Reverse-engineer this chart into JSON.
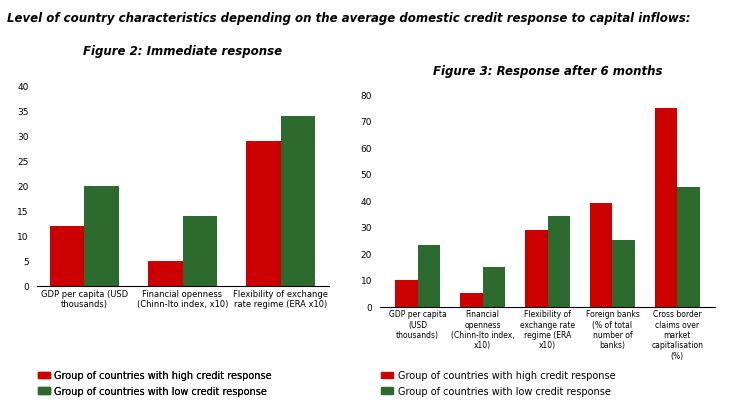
{
  "title": "Level of country characteristics depending on the average domestic credit response to capital inflows:",
  "title_fontsize": 8.5,
  "fig2_title": "Figure 2: Immediate response",
  "fig3_title": "Figure 3: Response after 6 months",
  "fig2_categories": [
    "GDP per capita (USD\nthousands)",
    "Financial openness\n(Chinn-Ito index, x10)",
    "Flexibility of exchange\nrate regime (ERA x10)"
  ],
  "fig2_high": [
    12,
    5,
    29
  ],
  "fig2_low": [
    20,
    14,
    34
  ],
  "fig2_ylim": [
    0,
    45
  ],
  "fig2_yticks": [
    0,
    5,
    10,
    15,
    20,
    25,
    30,
    35,
    40
  ],
  "fig3_categories": [
    "GDP per capita\n(USD\nthousands)",
    "Financial\nopenness\n(Chinn-Ito index,\nx10)",
    "Flexibility of\nexchange rate\nregime (ERA\nx10)",
    "Foreign banks\n(% of total\nnumber of\nbanks)",
    "Cross border\nclaims over\nmarket\ncapitalisation\n(%)"
  ],
  "fig3_high": [
    10,
    5,
    29,
    39,
    75
  ],
  "fig3_low": [
    23,
    15,
    34,
    25,
    45
  ],
  "fig3_ylim": [
    0,
    85
  ],
  "fig3_yticks": [
    0,
    10,
    20,
    30,
    40,
    50,
    60,
    70,
    80
  ],
  "color_high": "#cc0000",
  "color_low": "#2d6a2d",
  "legend_high": "Group of countries with high credit response",
  "legend_low": "Group of countries with low credit response",
  "background_color": "#ffffff",
  "bar_width": 0.35
}
